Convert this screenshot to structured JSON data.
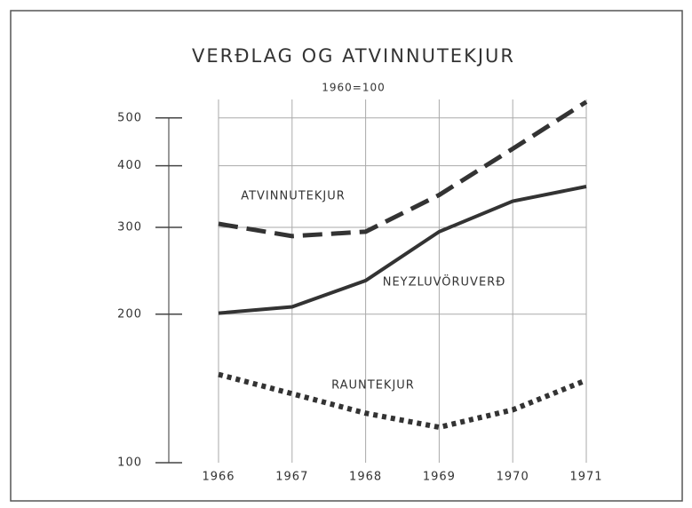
{
  "chart_data": {
    "type": "line",
    "title": "VERÐLAG OG ATVINNUTEKJUR",
    "subtitle": "1960=100",
    "x": [
      1966,
      1967,
      1968,
      1969,
      1970,
      1971
    ],
    "log_y": true,
    "ylim": [
      100,
      545
    ],
    "yticks": [
      100,
      200,
      300,
      400,
      500
    ],
    "grid": true,
    "series": [
      {
        "name": "ATVINNUTEKJUR",
        "color": "#333333",
        "style": "dashed",
        "values": [
          305,
          288,
          294,
          349,
          433,
          539
        ]
      },
      {
        "name": "NEYZLUVÖRUVERÐ",
        "color": "#333333",
        "style": "solid",
        "values": [
          201,
          207,
          234,
          294,
          339,
          363
        ]
      },
      {
        "name": "RAUNTEKJUR",
        "color": "#333333",
        "style": "dotted",
        "values": [
          151,
          138,
          126,
          118,
          128,
          147
        ]
      }
    ]
  }
}
